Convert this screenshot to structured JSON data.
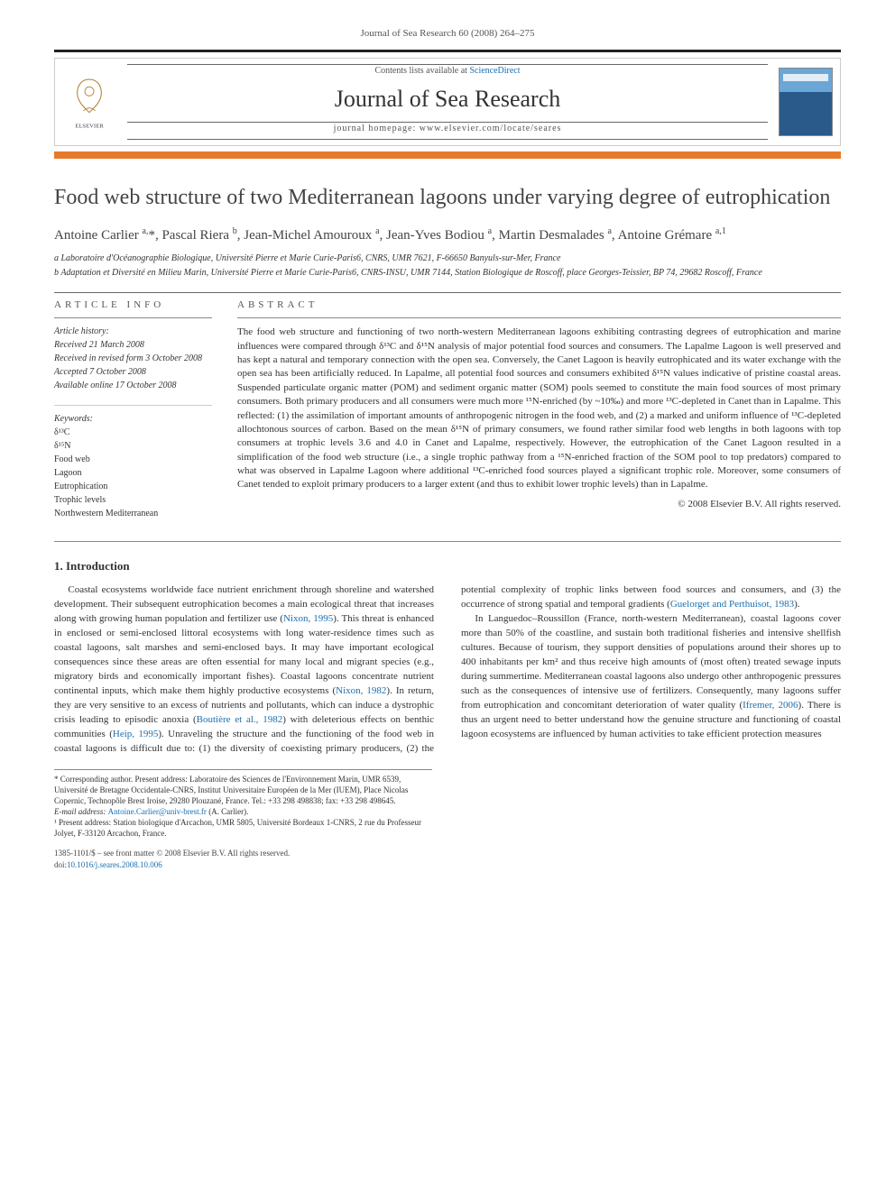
{
  "header": {
    "running_head": "Journal of Sea Research 60 (2008) 264–275"
  },
  "banner": {
    "contents_line_prefix": "Contents lists available at ",
    "contents_link": "ScienceDirect",
    "journal_name": "Journal of Sea Research",
    "homepage_label": "journal homepage: ",
    "homepage_url": "www.elsevier.com/locate/seares",
    "publisher_label": "ELSEVIER",
    "cover_small_text1": "JOURNAL OF",
    "cover_small_text2": "SEA RESEARCH"
  },
  "article": {
    "title": "Food web structure of two Mediterranean lagoons under varying degree of eutrophication",
    "authors_html": "Antoine Carlier <sup>a,</sup>*, Pascal Riera <sup>b</sup>, Jean-Michel Amouroux <sup>a</sup>, Jean-Yves Bodiou <sup>a</sup>, Martin Desmalades <sup>a</sup>, Antoine Grémare <sup>a,1</sup>",
    "affiliations": [
      "a  Laboratoire d'Océanographie Biologique, Université Pierre et Marie Curie-Paris6, CNRS, UMR 7621, F-66650 Banyuls-sur-Mer, France",
      "b  Adaptation et Diversité en Milieu Marin, Université Pierre et Marie Curie-Paris6, CNRS-INSU, UMR 7144, Station Biologique de Roscoff, place Georges-Teissier, BP 74, 29682 Roscoff, France"
    ]
  },
  "info": {
    "head": "ARTICLE INFO",
    "history_head": "Article history:",
    "history": [
      "Received 21 March 2008",
      "Received in revised form 3 October 2008",
      "Accepted 7 October 2008",
      "Available online 17 October 2008"
    ],
    "keywords_head": "Keywords:",
    "keywords": [
      "δ¹³C",
      "δ¹⁵N",
      "Food web",
      "Lagoon",
      "Eutrophication",
      "Trophic levels",
      "Northwestern Mediterranean"
    ]
  },
  "abstract": {
    "head": "ABSTRACT",
    "text": "The food web structure and functioning of two north-western Mediterranean lagoons exhibiting contrasting degrees of eutrophication and marine influences were compared through δ¹³C and δ¹⁵N analysis of major potential food sources and consumers. The Lapalme Lagoon is well preserved and has kept a natural and temporary connection with the open sea. Conversely, the Canet Lagoon is heavily eutrophicated and its water exchange with the open sea has been artificially reduced. In Lapalme, all potential food sources and consumers exhibited δ¹⁵N values indicative of pristine coastal areas. Suspended particulate organic matter (POM) and sediment organic matter (SOM) pools seemed to constitute the main food sources of most primary consumers. Both primary producers and all consumers were much more ¹⁵N-enriched (by ~10‰) and more ¹³C-depleted in Canet than in Lapalme. This reflected: (1) the assimilation of important amounts of anthropogenic nitrogen in the food web, and (2) a marked and uniform influence of ¹³C-depleted allochtonous sources of carbon. Based on the mean δ¹⁵N of primary consumers, we found rather similar food web lengths in both lagoons with top consumers at trophic levels 3.6 and 4.0 in Canet and Lapalme, respectively. However, the eutrophication of the Canet Lagoon resulted in a simplification of the food web structure (i.e., a single trophic pathway from a ¹⁵N-enriched fraction of the SOM pool to top predators) compared to what was observed in Lapalme Lagoon where additional ¹³C-enriched food sources played a significant trophic role. Moreover, some consumers of Canet tended to exploit primary producers to a larger extent (and thus to exhibit lower trophic levels) than in Lapalme.",
    "copyright": "© 2008 Elsevier B.V. All rights reserved."
  },
  "intro": {
    "head": "1. Introduction",
    "col_html": "<p>Coastal ecosystems worldwide face nutrient enrichment through shoreline and watershed development. Their subsequent eutrophication becomes a main ecological threat that increases along with growing human population and fertilizer use (<span class='ref-link'>Nixon, 1995</span>). This threat is enhanced in enclosed or semi-enclosed littoral ecosystems with long water-residence times such as coastal lagoons, salt marshes and semi-enclosed bays. It may have important ecological consequences since these areas are often essential for many local and migrant species (e.g., migratory birds and economically important fishes). Coastal lagoons concentrate nutrient continental inputs, which make them highly productive ecosystems (<span class='ref-link'>Nixon, 1982</span>). In return, they are very sensitive to an excess of nutrients and pollutants, which can induce a dystrophic crisis leading to episodic anoxia (<span class='ref-link'>Boutière et al., 1982</span>) with deleterious effects on benthic communities (<span class='ref-link'>Heip, 1995</span>). Unraveling the structure and the functioning of the food web in coastal lagoons is difficult due to: (1) the diversity of coexisting primary producers, (2) the potential complexity of trophic links between food sources and consumers, and (3) the occurrence of strong spatial and temporal gradients (<span class='ref-link'>Guelorget and Perthuisot, 1983</span>).</p><p>In Languedoc–Roussillon (France, north-western Mediterranean), coastal lagoons cover more than 50% of the coastline, and sustain both traditional fisheries and intensive shellfish cultures. Because of tourism, they support densities of populations around their shores up to 400 inhabitants per km² and thus receive high amounts of (most often) treated sewage inputs during summertime. Mediterranean coastal lagoons also undergo other anthropogenic pressures such as the consequences of intensive use of fertilizers. Consequently, many lagoons suffer from eutrophication and concomitant deterioration of water quality (<span class='ref-link'>Ifremer, 2006</span>). There is thus an urgent need to better understand how the genuine structure and functioning of coastal lagoon ecosystems are influenced by human activities to take efficient protection measures</p>"
  },
  "footnotes": {
    "corr": "* Corresponding author. Present address: Laboratoire des Sciences de l'Environnement Marin, UMR 6539, Université de Bretagne Occidentale-CNRS, Institut Universitaire Européen de la Mer (IUEM), Place Nicolas Copernic, Technopôle Brest Iroise, 29280 Plouzané, France. Tel.: +33 298 498838; fax: +33 298 498645.",
    "email_label": "E-mail address: ",
    "email": "Antoine.Carlier@univ-brest.fr",
    "email_suffix": " (A. Carlier).",
    "note1": "¹ Present address: Station biologique d'Arcachon, UMR 5805, Université Bordeaux 1-CNRS, 2 rue du Professeur Jolyet, F-33120 Arcachon, France."
  },
  "bottom": {
    "front_matter": "1385-1101/$ – see front matter © 2008 Elsevier B.V. All rights reserved.",
    "doi_label": "doi:",
    "doi": "10.1016/j.seares.2008.10.006"
  },
  "colors": {
    "accent_orange": "#e7792b",
    "link_blue": "#1a6fb0",
    "text": "#323232",
    "rule": "#888888"
  }
}
